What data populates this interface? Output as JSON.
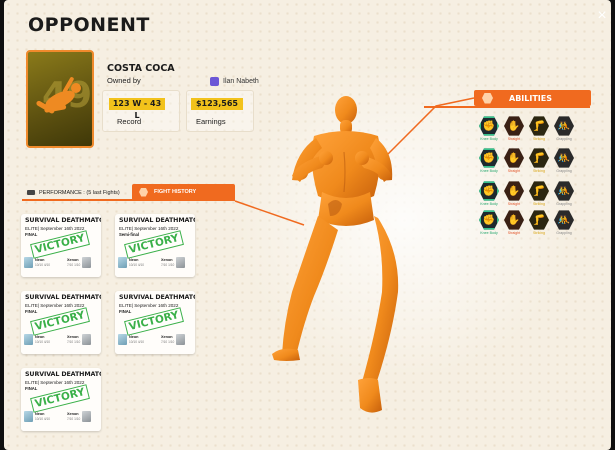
{
  "modal": {
    "title": "OPPONENT",
    "close_icon": "×"
  },
  "opponent": {
    "name": "COSTA COCA",
    "owned_by_label": "Owned by",
    "owner_name": "Ilan Nabeth",
    "record_value": "123 W - 43 L",
    "record_label": "Record",
    "earnings_value": "$123,565",
    "earnings_label": "Earnings"
  },
  "tabs": {
    "performance": "PERFORMANCE : (5 last Fights)",
    "fight_history": "FIGHT HISTORY"
  },
  "fights": [
    {
      "title": "SURVIVAL DEATHMATCH",
      "subtitle": "ELITE| September 16th 2022",
      "round": "FINAL",
      "result": "VICTORY",
      "fighter_a": "Neon",
      "score_a": "10/10 4/10",
      "fighter_b": "Xenon",
      "score_b": "7/10 1/10"
    },
    {
      "title": "SURVIVAL DEATHMATCH",
      "subtitle": "ELITE| September 16th 2022",
      "round": "Semi-final",
      "result": "VICTORY",
      "fighter_a": "Neon",
      "score_a": "10/10 4/10",
      "fighter_b": "Xenon",
      "score_b": "7/10 1/10"
    },
    {
      "title": "SURVIVAL DEATHMATCH",
      "subtitle": "ELITE| September 16th 2022",
      "round": "FINAL",
      "result": "VICTORY",
      "fighter_a": "Neon",
      "score_a": "10/10 4/10",
      "fighter_b": "Xenon",
      "score_b": "7/10 1/10"
    },
    {
      "title": "SURVIVAL DEATHMATCH",
      "subtitle": "ELITE| September 16th 2022",
      "round": "FINAL",
      "result": "VICTORY",
      "fighter_a": "Neon",
      "score_a": "10/10 4/10",
      "fighter_b": "Xenon",
      "score_b": "7/10 1/10"
    },
    {
      "title": "SURVIVAL DEATHMATCH",
      "subtitle": "ELITE| September 16th 2022",
      "round": "FINAL",
      "result": "VICTORY",
      "fighter_a": "Neon",
      "score_a": "10/10 4/10",
      "fighter_b": "Xenon",
      "score_b": "7/10 1/10"
    }
  ],
  "abilities": {
    "header": "ABILITIES",
    "column_labels": [
      "Knee Body",
      "Straight",
      "Striking",
      "Grappling"
    ],
    "rows": 4,
    "colors": {
      "green": "#23a56b",
      "orange": "#e2552a",
      "gold": "#d9a514",
      "gray": "#888888",
      "accent": "#f06a1f",
      "stat_pill": "#f2c21b",
      "figure": "#f08a1c"
    }
  }
}
